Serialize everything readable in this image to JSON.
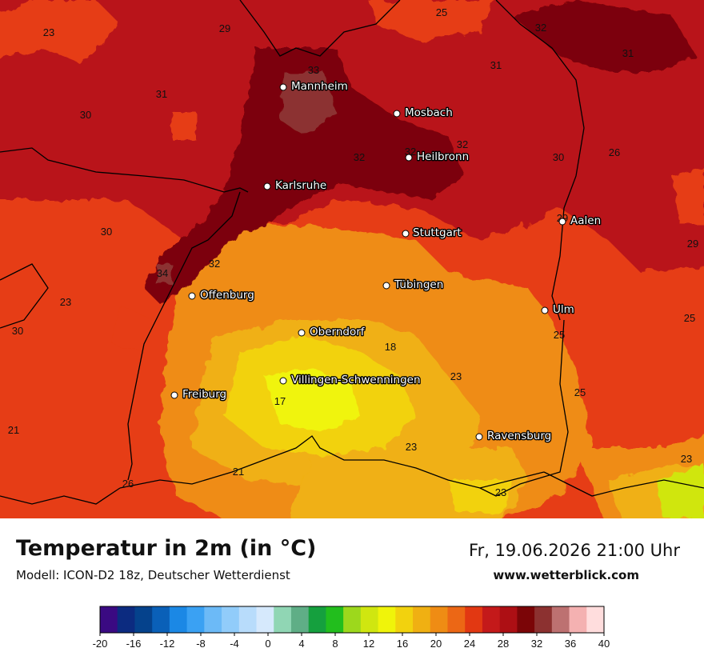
{
  "header": {
    "title": "Temperatur in 2m (in °C)",
    "subtitle": "Modell: ICON-D2 18z, Deutscher Wetterdienst",
    "datetime": "Fr, 19.06.2026 21:00 Uhr",
    "website": "www.wetterblick.com"
  },
  "cities": [
    {
      "name": "Mannheim"
    },
    {
      "name": "Mosbach"
    },
    {
      "name": "Heilbronn"
    },
    {
      "name": "Karlsruhe"
    },
    {
      "name": "Stuttgart"
    },
    {
      "name": "Aalen"
    },
    {
      "name": "Offenburg"
    },
    {
      "name": "Tübingen"
    },
    {
      "name": "Ulm"
    },
    {
      "name": "Oberndorf"
    },
    {
      "name": "Villingen-Schwenningen"
    },
    {
      "name": "Freiburg"
    },
    {
      "name": "Ravensburg"
    }
  ],
  "temperature_labels": [
    "23",
    "29",
    "25",
    "32",
    "31",
    "33",
    "31",
    "30",
    "31",
    "32",
    "32",
    "32",
    "30",
    "26",
    "30",
    "32",
    "29",
    "29",
    "34",
    "23",
    "30",
    "25",
    "25",
    "18",
    "23",
    "25",
    "21",
    "17",
    "23",
    "21",
    "26",
    "23",
    "23"
  ],
  "legend": {
    "ticks": [
      "-20",
      "-16",
      "-12",
      "-8",
      "-4",
      "0",
      "4",
      "8",
      "12",
      "16",
      "20",
      "24",
      "28",
      "32",
      "36",
      "40"
    ],
    "colors": [
      "#3a0a82",
      "#0c2b80",
      "#05428c",
      "#0a60b8",
      "#1b88e5",
      "#3aa1f3",
      "#6cbaf7",
      "#91ccfa",
      "#b8dcfb",
      "#d6e9fc",
      "#90d6b4",
      "#5fae86",
      "#15a03e",
      "#22be1d",
      "#9dd81c",
      "#d0e610",
      "#f0f40a",
      "#f2d20e",
      "#f0b012",
      "#ef8c14",
      "#ec6715",
      "#e23812",
      "#c4191a",
      "#ad0f14",
      "#7b0507",
      "#8c3130",
      "#bd7171",
      "#f4b1b1",
      "#ffdddd"
    ]
  }
}
